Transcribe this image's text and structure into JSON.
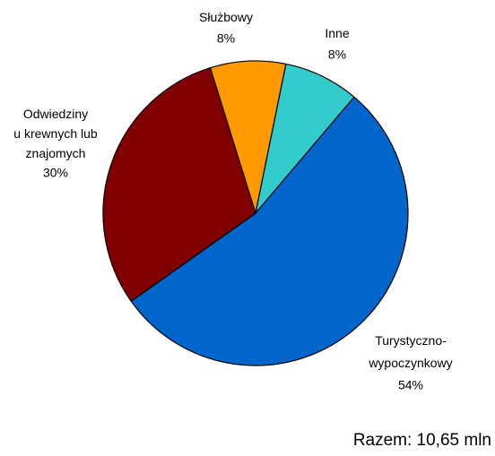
{
  "chart_data": {
    "type": "pie",
    "categories": [
      "Służbowy",
      "Inne",
      "Turystyczno-\nwypoczynkowy",
      "Odwiedziny\nu krewnych lub\nznajomych"
    ],
    "values": [
      8,
      8,
      54,
      30
    ],
    "value_labels": [
      "8%",
      "8%",
      "54%",
      "30%"
    ],
    "colors": [
      "#ff9900",
      "#33cccc",
      "#0066cc",
      "#800000"
    ],
    "annotation": "Razem: 10,65 mln"
  }
}
